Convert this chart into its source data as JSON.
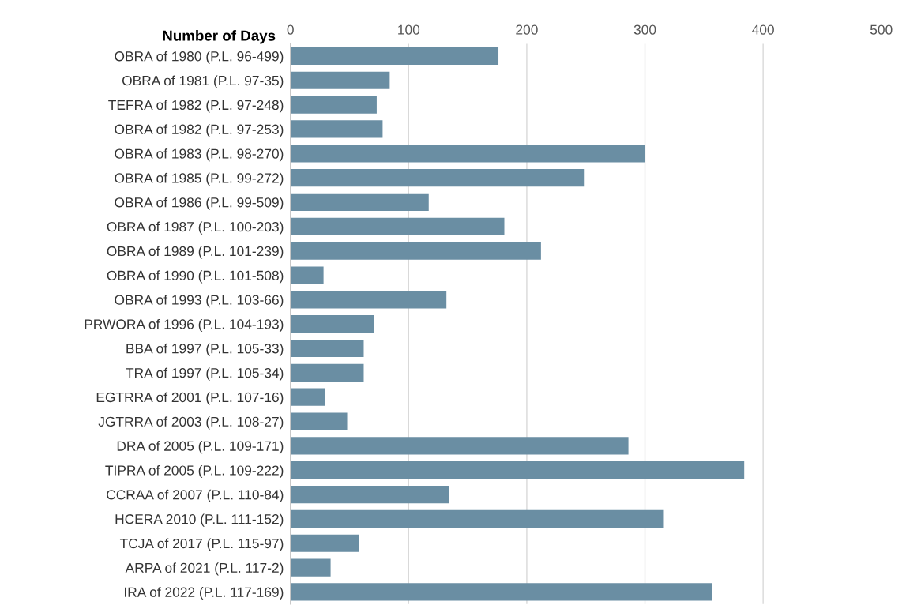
{
  "chart_data": {
    "type": "bar",
    "orientation": "horizontal",
    "xlabel": "Number of Days",
    "categories": [
      "OBRA of 1980 (P.L. 96-499)",
      "OBRA of 1981 (P.L. 97-35)",
      "TEFRA of 1982 (P.L. 97-248)",
      "OBRA of 1982 (P.L. 97-253)",
      "OBRA of 1983 (P.L. 98-270)",
      "OBRA of 1985 (P.L. 99-272)",
      "OBRA of 1986 (P.L. 99-509)",
      "OBRA of 1987 (P.L. 100-203)",
      "OBRA of 1989 (P.L. 101-239)",
      "OBRA of 1990 (P.L. 101-508)",
      "OBRA of 1993 (P.L. 103-66)",
      "PRWORA of 1996 (P.L. 104-193)",
      "BBA of 1997 (P.L. 105-33)",
      "TRA of 1997 (P.L. 105-34)",
      "EGTRRA of 2001 (P.L. 107-16)",
      "JGTRRA of 2003 (P.L. 108-27)",
      "DRA of 2005 (P.L. 109-171)",
      "TIPRA of 2005 (P.L. 109-222)",
      "CCRAA of 2007 (P.L. 110-84)",
      "HCERA 2010 (P.L. 111-152)",
      "TCJA of 2017 (P.L. 115-97)",
      "ARPA of 2021 (P.L. 117-2)",
      "IRA of 2022 (P.L. 117-169)"
    ],
    "values": [
      176,
      84,
      73,
      78,
      300,
      249,
      117,
      181,
      212,
      28,
      132,
      71,
      62,
      62,
      29,
      48,
      286,
      384,
      134,
      316,
      58,
      34,
      357
    ],
    "color": "#6a8ea3",
    "xlim": [
      0,
      500
    ],
    "xticks": [
      0,
      100,
      200,
      300,
      400,
      500
    ],
    "grid": "x",
    "legend": false
  }
}
